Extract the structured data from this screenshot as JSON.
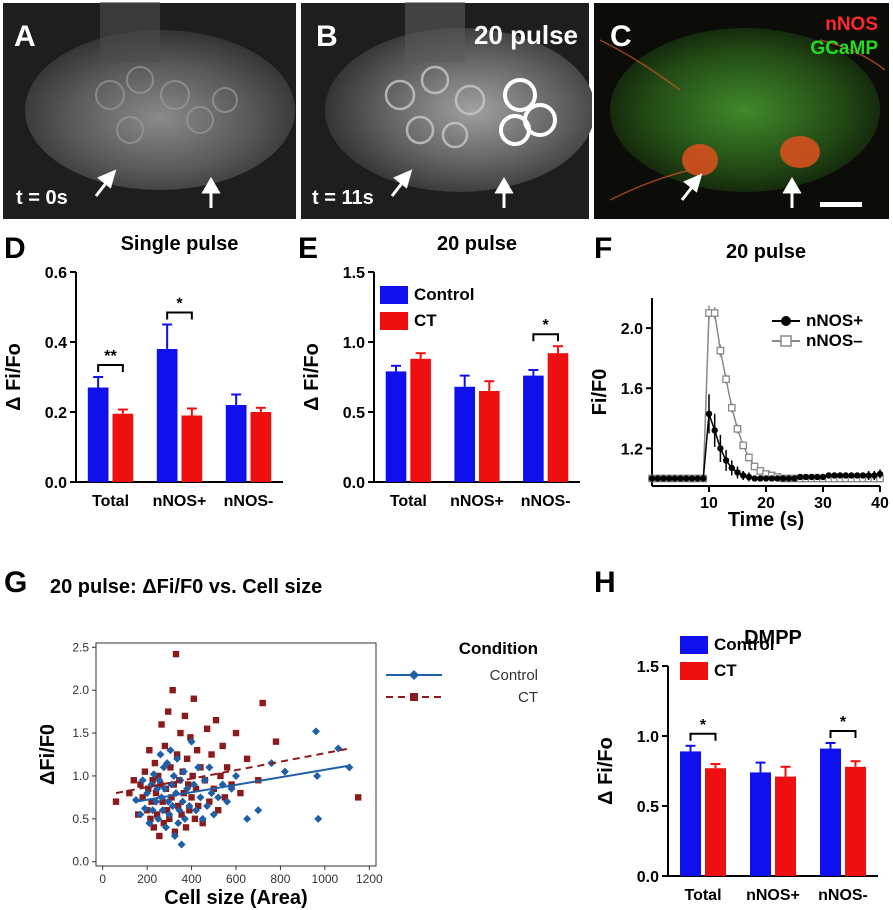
{
  "micrographs": [
    {
      "label": "A",
      "time_label": "t = 0s"
    },
    {
      "label": "B",
      "time_label": "t = 11s",
      "title": "20 pulse"
    },
    {
      "label": "C",
      "legend": [
        "nNOS",
        "GCaMP"
      ],
      "legend_colors": [
        "#ff2a2a",
        "#22dd22"
      ]
    }
  ],
  "colors": {
    "control": "#1010ee",
    "ct": "#ee1010",
    "nnos_pos": "#000000",
    "nnos_neg": "#888888",
    "g_control": "#1f5fa8",
    "g_ct": "#8b1a1a"
  },
  "chart_data": [
    {
      "panel": "D",
      "type": "bar",
      "title": "Single pulse",
      "ylabel": "Δ Fi/Fo",
      "categories": [
        "Total",
        "nNOS+",
        "nNOS-"
      ],
      "ylim": [
        0,
        0.6
      ],
      "yticks": [
        "0.0",
        "0.2",
        "0.4",
        "0.6"
      ],
      "series": [
        {
          "values": [
            0.27,
            0.38,
            0.22
          ],
          "errors": [
            0.03,
            0.07,
            0.03
          ]
        },
        {
          "values": [
            0.195,
            0.19,
            0.2
          ],
          "errors": [
            0.012,
            0.02,
            0.012
          ]
        }
      ],
      "significance": [
        {
          "category": 0,
          "label": "**"
        },
        {
          "category": 1,
          "label": "*"
        }
      ]
    },
    {
      "panel": "E",
      "type": "bar",
      "title": "20 pulse",
      "ylabel": "Δ Fi/Fo",
      "categories": [
        "Total",
        "nNOS+",
        "nNOS-"
      ],
      "ylim": [
        0,
        1.5
      ],
      "yticks": [
        "0.0",
        "0.5",
        "1.0",
        "1.5"
      ],
      "legend": [
        "Control",
        "CT"
      ],
      "series": [
        {
          "name": "Control",
          "values": [
            0.79,
            0.68,
            0.76
          ],
          "errors": [
            0.04,
            0.08,
            0.04
          ]
        },
        {
          "name": "CT",
          "values": [
            0.88,
            0.65,
            0.92
          ],
          "errors": [
            0.04,
            0.07,
            0.05
          ]
        }
      ],
      "significance": [
        {
          "category": 2,
          "label": "*"
        }
      ]
    },
    {
      "panel": "F",
      "type": "line",
      "title": "20 pulse",
      "ylabel": "Fi/F0",
      "xlabel": "Time (s)",
      "xlim": [
        0,
        40
      ],
      "ylim": [
        0.95,
        2.2
      ],
      "xticks": [
        "10",
        "20",
        "30",
        "40"
      ],
      "yticks": [
        "1.2",
        "1.6",
        "2.0"
      ],
      "x": [
        0,
        1,
        2,
        3,
        4,
        5,
        6,
        7,
        8,
        9,
        10,
        11,
        12,
        13,
        14,
        15,
        16,
        17,
        18,
        19,
        20,
        21,
        22,
        23,
        24,
        25,
        26,
        27,
        28,
        29,
        30,
        31,
        32,
        33,
        34,
        35,
        36,
        37,
        38,
        39,
        40
      ],
      "series": [
        {
          "name": "nNOS+",
          "values": [
            1.0,
            1.0,
            1.0,
            1.0,
            1.0,
            1.0,
            1.0,
            1.0,
            1.0,
            1.0,
            1.43,
            1.32,
            1.2,
            1.12,
            1.07,
            1.04,
            1.02,
            1.01,
            1.0,
            1.0,
            1.0,
            1.0,
            1.0,
            1.0,
            1.0,
            1.0,
            1.01,
            1.01,
            1.01,
            1.01,
            1.01,
            1.02,
            1.02,
            1.02,
            1.02,
            1.02,
            1.02,
            1.02,
            1.02,
            1.02,
            1.03
          ],
          "errors": [
            0.02,
            0.02,
            0.02,
            0.02,
            0.02,
            0.02,
            0.02,
            0.02,
            0.02,
            0.02,
            0.13,
            0.11,
            0.09,
            0.07,
            0.05,
            0.04,
            0.03,
            0.03,
            0.02,
            0.02,
            0.02,
            0.02,
            0.02,
            0.02,
            0.02,
            0.02,
            0.02,
            0.02,
            0.02,
            0.02,
            0.02,
            0.02,
            0.02,
            0.02,
            0.02,
            0.02,
            0.02,
            0.02,
            0.03,
            0.03,
            0.03
          ]
        },
        {
          "name": "nNOS–",
          "values": [
            1.0,
            1.0,
            1.0,
            1.0,
            1.0,
            1.0,
            1.0,
            1.0,
            1.0,
            1.0,
            2.1,
            2.1,
            1.85,
            1.66,
            1.47,
            1.33,
            1.22,
            1.14,
            1.08,
            1.05,
            1.03,
            1.02,
            1.01,
            1.0,
            1.0,
            1.0,
            1.0,
            1.0,
            1.0,
            1.0,
            1.0,
            1.0,
            1.0,
            1.0,
            1.0,
            1.0,
            1.0,
            1.0,
            1.0,
            1.0,
            1.0
          ],
          "errors": [
            0.01,
            0.01,
            0.01,
            0.01,
            0.01,
            0.01,
            0.01,
            0.01,
            0.01,
            0.01,
            0.05,
            0.04,
            0.04,
            0.03,
            0.03,
            0.03,
            0.02,
            0.02,
            0.02,
            0.01,
            0.01,
            0.01,
            0.01,
            0.01,
            0.01,
            0.01,
            0.01,
            0.01,
            0.01,
            0.01,
            0.01,
            0.01,
            0.01,
            0.01,
            0.01,
            0.01,
            0.01,
            0.01,
            0.01,
            0.01,
            0.01
          ]
        }
      ]
    },
    {
      "panel": "G",
      "type": "scatter",
      "title": "20 pulse: ΔFi/F0 vs. Cell size",
      "xlabel": "Cell size (Area)",
      "ylabel": "ΔFi/F0",
      "xlim": [
        -30,
        1230
      ],
      "ylim": [
        -0.05,
        2.55
      ],
      "xticks": [
        "0",
        "200",
        "400",
        "600",
        "800",
        "1000",
        "1200"
      ],
      "yticks": [
        "0.0",
        "0.5",
        "1.0",
        "1.5",
        "2.0",
        "2.5"
      ],
      "legend_title": "Condition",
      "series": [
        {
          "name": "Control",
          "trend": [
            [
              150,
              0.7
            ],
            [
              1110,
              1.12
            ]
          ],
          "points": [
            [
              150,
              0.72
            ],
            [
              170,
              0.55
            ],
            [
              180,
              0.95
            ],
            [
              190,
              0.62
            ],
            [
              200,
              0.8
            ],
            [
              210,
              0.45
            ],
            [
              220,
              0.9
            ],
            [
              225,
              0.6
            ],
            [
              230,
              1.02
            ],
            [
              240,
              0.7
            ],
            [
              245,
              0.85
            ],
            [
              250,
              0.5
            ],
            [
              255,
              0.95
            ],
            [
              260,
              1.25
            ],
            [
              265,
              0.75
            ],
            [
              270,
              0.6
            ],
            [
              275,
              1.1
            ],
            [
              280,
              0.85
            ],
            [
              285,
              0.4
            ],
            [
              290,
              1.15
            ],
            [
              295,
              0.7
            ],
            [
              300,
              0.55
            ],
            [
              305,
              1.3
            ],
            [
              310,
              0.9
            ],
            [
              315,
              0.65
            ],
            [
              320,
              1.0
            ],
            [
              325,
              0.3
            ],
            [
              330,
              0.8
            ],
            [
              335,
              1.2
            ],
            [
              340,
              0.45
            ],
            [
              345,
              0.6
            ],
            [
              350,
              0.95
            ],
            [
              355,
              0.2
            ],
            [
              360,
              0.7
            ],
            [
              365,
              1.05
            ],
            [
              370,
              0.5
            ],
            [
              380,
              0.85
            ],
            [
              390,
              0.65
            ],
            [
              400,
              1.4
            ],
            [
              410,
              0.9
            ],
            [
              420,
              0.6
            ],
            [
              430,
              1.1
            ],
            [
              440,
              0.75
            ],
            [
              450,
              0.5
            ],
            [
              460,
              0.95
            ],
            [
              470,
              0.65
            ],
            [
              480,
              1.1
            ],
            [
              490,
              0.8
            ],
            [
              500,
              0.55
            ],
            [
              520,
              0.75
            ],
            [
              540,
              0.9
            ],
            [
              560,
              0.7
            ],
            [
              580,
              0.85
            ],
            [
              600,
              1.0
            ],
            [
              650,
              0.5
            ],
            [
              700,
              0.6
            ],
            [
              760,
              1.15
            ],
            [
              820,
              1.05
            ],
            [
              960,
              1.52
            ],
            [
              965,
              1.0
            ],
            [
              970,
              0.5
            ],
            [
              1060,
              1.32
            ],
            [
              1110,
              1.1
            ]
          ]
        },
        {
          "name": "CT",
          "trend": [
            [
              60,
              0.8
            ],
            [
              1110,
              1.32
            ]
          ],
          "points": [
            [
              60,
              0.7
            ],
            [
              120,
              0.8
            ],
            [
              140,
              0.95
            ],
            [
              160,
              0.55
            ],
            [
              170,
              0.9
            ],
            [
              180,
              0.75
            ],
            [
              190,
              1.05
            ],
            [
              200,
              0.6
            ],
            [
              205,
              0.85
            ],
            [
              210,
              1.3
            ],
            [
              215,
              0.5
            ],
            [
              220,
              0.7
            ],
            [
              225,
              0.95
            ],
            [
              230,
              0.4
            ],
            [
              235,
              1.15
            ],
            [
              240,
              0.8
            ],
            [
              245,
              0.55
            ],
            [
              250,
              1.0
            ],
            [
              255,
              0.3
            ],
            [
              260,
              0.9
            ],
            [
              265,
              1.6
            ],
            [
              270,
              0.7
            ],
            [
              275,
              0.45
            ],
            [
              280,
              1.35
            ],
            [
              285,
              0.85
            ],
            [
              290,
              0.6
            ],
            [
              295,
              1.75
            ],
            [
              300,
              0.5
            ],
            [
              305,
              1.1
            ],
            [
              310,
              0.75
            ],
            [
              315,
              2.0
            ],
            [
              320,
              0.9
            ],
            [
              325,
              0.35
            ],
            [
              330,
              2.42
            ],
            [
              335,
              1.25
            ],
            [
              340,
              0.65
            ],
            [
              345,
              0.95
            ],
            [
              350,
              1.5
            ],
            [
              355,
              0.55
            ],
            [
              360,
              1.05
            ],
            [
              365,
              0.8
            ],
            [
              370,
              1.7
            ],
            [
              375,
              0.4
            ],
            [
              380,
              1.2
            ],
            [
              385,
              0.9
            ],
            [
              390,
              0.6
            ],
            [
              395,
              1.45
            ],
            [
              400,
              0.75
            ],
            [
              405,
              1.0
            ],
            [
              410,
              1.9
            ],
            [
              415,
              0.5
            ],
            [
              420,
              0.85
            ],
            [
              425,
              1.3
            ],
            [
              430,
              0.65
            ],
            [
              440,
              1.1
            ],
            [
              450,
              0.45
            ],
            [
              460,
              0.95
            ],
            [
              470,
              1.55
            ],
            [
              480,
              0.7
            ],
            [
              490,
              1.25
            ],
            [
              500,
              0.85
            ],
            [
              510,
              1.65
            ],
            [
              520,
              0.6
            ],
            [
              530,
              1.0
            ],
            [
              540,
              1.35
            ],
            [
              550,
              0.75
            ],
            [
              560,
              1.1
            ],
            [
              580,
              0.9
            ],
            [
              600,
              1.5
            ],
            [
              620,
              0.8
            ],
            [
              650,
              1.2
            ],
            [
              700,
              0.95
            ],
            [
              720,
              1.85
            ],
            [
              780,
              1.4
            ],
            [
              1150,
              0.75
            ]
          ]
        }
      ]
    },
    {
      "panel": "H",
      "type": "bar",
      "title": "DMPP",
      "ylabel": "Δ Fi/Fo",
      "categories": [
        "Total",
        "nNOS+",
        "nNOS-"
      ],
      "ylim": [
        0,
        1.5
      ],
      "yticks": [
        "0.0",
        "0.5",
        "1.0",
        "1.5"
      ],
      "legend": [
        "Control",
        "CT"
      ],
      "series": [
        {
          "name": "Control",
          "values": [
            0.89,
            0.74,
            0.91
          ],
          "errors": [
            0.04,
            0.07,
            0.04
          ]
        },
        {
          "name": "CT",
          "values": [
            0.77,
            0.71,
            0.78
          ],
          "errors": [
            0.03,
            0.07,
            0.04
          ]
        }
      ],
      "significance": [
        {
          "category": 0,
          "label": "*"
        },
        {
          "category": 2,
          "label": "*"
        }
      ]
    }
  ]
}
